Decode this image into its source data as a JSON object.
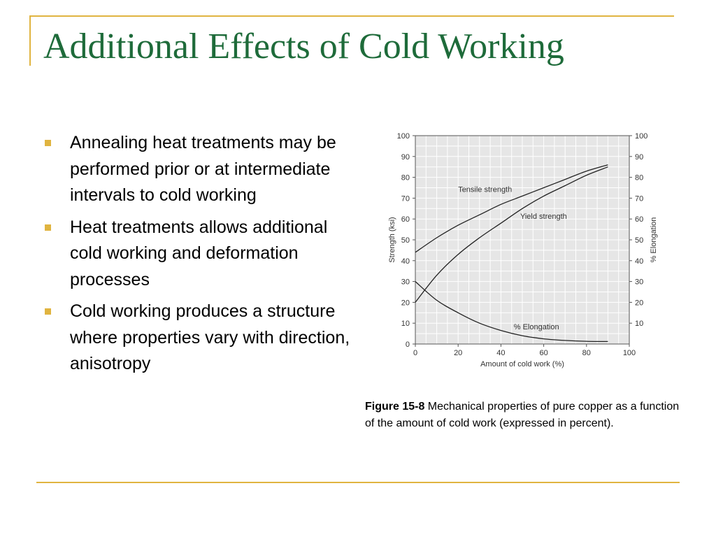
{
  "slide": {
    "title": "Additional Effects of Cold Working",
    "accent_color": "#E0B440",
    "title_color": "#1E6B3A",
    "bullets": [
      "Annealing heat treatments may be performed prior or at intermediate intervals to cold working",
      "Heat treatments allows additional cold working and deformation processes",
      "Cold working produces a structure where properties vary with direction, anisotropy"
    ]
  },
  "figure": {
    "caption_label": "Figure 15-8",
    "caption_text": " Mechanical properties of pure copper as a function of the amount of cold work (expressed in percent)."
  },
  "chart_data": {
    "type": "line",
    "xlabel": "Amount of cold work (%)",
    "ylabel": "Strength (ksi)",
    "y2label": "% Elongation",
    "xlim": [
      0,
      100
    ],
    "ylim": [
      0,
      100
    ],
    "y2lim": [
      0,
      100
    ],
    "xticks": [
      0,
      20,
      40,
      60,
      80,
      100
    ],
    "yticks": [
      0,
      10,
      20,
      30,
      40,
      50,
      60,
      70,
      80,
      90,
      100
    ],
    "y2ticks": [
      10,
      20,
      30,
      40,
      50,
      60,
      70,
      80,
      90,
      100
    ],
    "grid": true,
    "series": [
      {
        "name": "Tensile strength",
        "axis": "left",
        "x": [
          0,
          10,
          20,
          30,
          40,
          50,
          60,
          70,
          80,
          90
        ],
        "y": [
          44,
          51,
          57,
          62,
          67,
          71,
          75,
          79,
          83,
          86
        ]
      },
      {
        "name": "Yield strength",
        "axis": "left",
        "x": [
          0,
          10,
          20,
          30,
          40,
          50,
          60,
          70,
          80,
          90
        ],
        "y": [
          20,
          33,
          43,
          51,
          58,
          65,
          71,
          76,
          81,
          85
        ]
      },
      {
        "name": "% Elongation",
        "axis": "right",
        "x": [
          0,
          10,
          20,
          30,
          40,
          50,
          60,
          70,
          80,
          90
        ],
        "y": [
          30,
          21,
          15,
          10,
          6.5,
          4,
          2.5,
          1.7,
          1.3,
          1.2
        ]
      }
    ]
  }
}
